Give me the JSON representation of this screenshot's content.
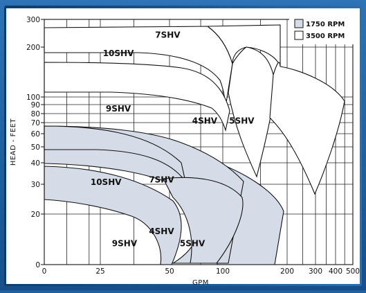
{
  "chart_data": {
    "type": "area",
    "title": "",
    "xlabel": "GPM",
    "ylabel": "HEAD - FEET",
    "x_scale": "log",
    "y_scale": "log",
    "x_ticks": [
      0,
      25,
      50,
      100,
      200,
      300,
      400,
      500
    ],
    "x_tick_labels": [
      "0",
      "25",
      "50",
      "100",
      "200",
      "300",
      "400",
      "500"
    ],
    "y_ticks": [
      0,
      20,
      30,
      40,
      50,
      60,
      70,
      80,
      90,
      100,
      200,
      300
    ],
    "y_tick_labels": [
      "0",
      "20",
      "30",
      "40",
      "50",
      "60",
      "70",
      "80",
      "90",
      "100",
      "200",
      "300"
    ],
    "grid": true,
    "legend_position": "top-right",
    "legend": [
      {
        "name": "1750 RPM",
        "color": "#d6dce8"
      },
      {
        "name": "3500 RPM",
        "color": "#ffffff"
      }
    ],
    "series": [
      {
        "name": "10SHV",
        "speed": "3500 RPM",
        "label_at": [
          24,
          3
        ]
      },
      {
        "name": "9SHV",
        "speed": "3500 RPM",
        "label_at": [
          24,
          7.5
        ]
      },
      {
        "name": "7SHV",
        "speed": "3500 RPM",
        "label_at": [
          40,
          1.5
        ]
      },
      {
        "name": "4SHV",
        "speed": "3500 RPM",
        "label_at": [
          52,
          8.5
        ]
      },
      {
        "name": "5SHV",
        "speed": "3500 RPM",
        "label_at": [
          64,
          8.5
        ]
      },
      {
        "name": "10SHV",
        "speed": "1750 RPM",
        "label_at": [
          20,
          13.5
        ]
      },
      {
        "name": "7SHV",
        "speed": "1750 RPM",
        "label_at": [
          38,
          13.3
        ]
      },
      {
        "name": "9SHV",
        "speed": "1750 RPM",
        "label_at": [
          26,
          18.5
        ]
      },
      {
        "name": "4SHV",
        "speed": "1750 RPM",
        "label_at": [
          38,
          17.5
        ]
      },
      {
        "name": "5SHV",
        "speed": "1750 RPM",
        "label_at": [
          48,
          18.5
        ]
      }
    ]
  }
}
